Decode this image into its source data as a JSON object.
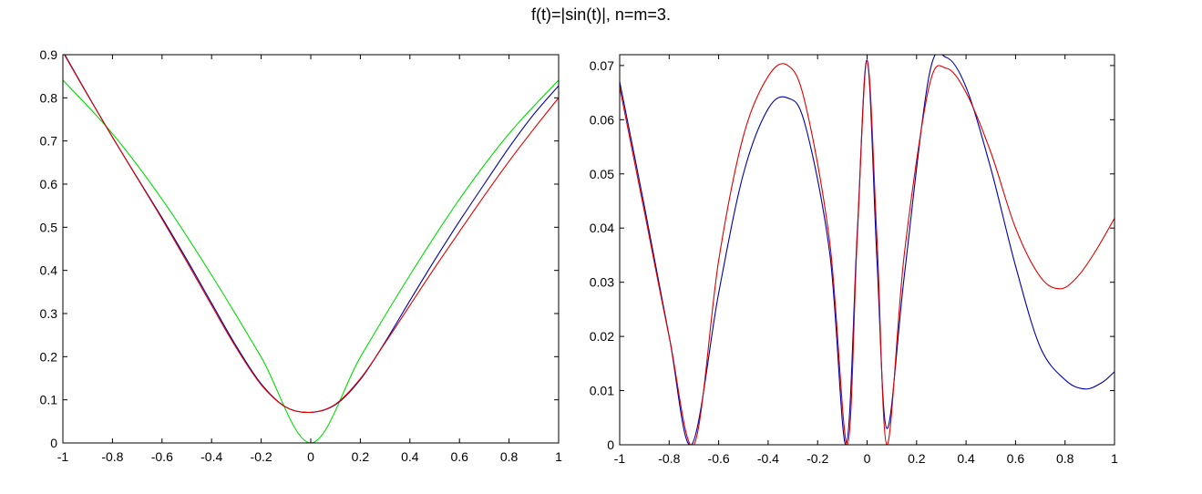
{
  "figure": {
    "title": "f(t)=|sin(t)|, n=m=3."
  },
  "chart_data": [
    {
      "type": "line",
      "xlim": [
        -1,
        1
      ],
      "ylim": [
        0,
        0.9
      ],
      "x_ticks": [
        -1,
        -0.8,
        -0.6,
        -0.4,
        -0.2,
        0,
        0.2,
        0.4,
        0.6,
        0.8,
        1
      ],
      "x_tick_labels": [
        "-1",
        "-0.8",
        "-0.6",
        "-0.4",
        "-0.2",
        "0",
        "0.2",
        "0.4",
        "0.6",
        "0.8",
        "1"
      ],
      "y_ticks": [
        0,
        0.1,
        0.2,
        0.3,
        0.4,
        0.5,
        0.6,
        0.7,
        0.8,
        0.9
      ],
      "y_tick_labels": [
        "0",
        "0.1",
        "0.2",
        "0.3",
        "0.4",
        "0.5",
        "0.6",
        "0.7",
        "0.8",
        "0.9"
      ],
      "grid": false,
      "series": [
        {
          "color": "#00dd00",
          "x": [
            -1,
            -0.8,
            -0.6,
            -0.4,
            -0.2,
            0,
            0.2,
            0.4,
            0.6,
            0.8,
            1
          ],
          "values": [
            0.841,
            0.717,
            0.565,
            0.389,
            0.199,
            0,
            0.199,
            0.389,
            0.565,
            0.717,
            0.841
          ]
        },
        {
          "color": "#0000aa",
          "x": [
            -1,
            -0.9,
            -0.8,
            -0.7,
            -0.6,
            -0.5,
            -0.4,
            -0.3,
            -0.2,
            -0.1,
            0,
            0.1,
            0.2,
            0.3,
            0.4,
            0.5,
            0.6,
            0.7,
            0.8,
            0.9,
            1
          ],
          "values": [
            0.908,
            0.807,
            0.709,
            0.615,
            0.522,
            0.425,
            0.324,
            0.224,
            0.137,
            0.083,
            0.071,
            0.089,
            0.147,
            0.234,
            0.33,
            0.424,
            0.514,
            0.6,
            0.685,
            0.762,
            0.828
          ]
        },
        {
          "color": "#dd0000",
          "x": [
            -1,
            -0.9,
            -0.8,
            -0.7,
            -0.6,
            -0.5,
            -0.4,
            -0.3,
            -0.2,
            -0.1,
            0,
            0.1,
            0.2,
            0.3,
            0.4,
            0.5,
            0.6,
            0.7,
            0.8,
            0.9,
            1
          ],
          "values": [
            0.906,
            0.806,
            0.709,
            0.614,
            0.519,
            0.42,
            0.319,
            0.22,
            0.135,
            0.083,
            0.071,
            0.09,
            0.149,
            0.232,
            0.319,
            0.406,
            0.49,
            0.573,
            0.653,
            0.728,
            0.8
          ]
        }
      ]
    },
    {
      "type": "line",
      "xlim": [
        -1,
        1
      ],
      "ylim": [
        0,
        0.072
      ],
      "x_ticks": [
        -1,
        -0.8,
        -0.6,
        -0.4,
        -0.2,
        0,
        0.2,
        0.4,
        0.6,
        0.8,
        1
      ],
      "x_tick_labels": [
        "-1",
        "-0.8",
        "-0.6",
        "-0.4",
        "-0.2",
        "0",
        "0.2",
        "0.4",
        "0.6",
        "0.8",
        "1"
      ],
      "y_ticks": [
        0,
        0.01,
        0.02,
        0.03,
        0.04,
        0.05,
        0.06,
        0.07
      ],
      "y_tick_labels": [
        "0",
        "0.01",
        "0.02",
        "0.03",
        "0.04",
        "0.05",
        "0.06",
        "0.07"
      ],
      "grid": false,
      "series": [
        {
          "color": "#0000aa",
          "x": [
            -1,
            -0.9,
            -0.8,
            -0.71,
            -0.6,
            -0.5,
            -0.4,
            -0.32,
            -0.25,
            -0.15,
            -0.085,
            -0.04,
            0,
            0.04,
            0.08,
            0.15,
            0.25,
            0.32,
            0.4,
            0.5,
            0.6,
            0.7,
            0.8,
            0.88,
            0.95,
            1
          ],
          "values": [
            0.067,
            0.044,
            0.02,
            0,
            0.028,
            0.05,
            0.062,
            0.064,
            0.059,
            0.035,
            0,
            0.039,
            0.071,
            0.034,
            0.003,
            0.031,
            0.068,
            0.0715,
            0.066,
            0.051,
            0.033,
            0.018,
            0.012,
            0.0103,
            0.0115,
            0.0135
          ]
        },
        {
          "color": "#dd0000",
          "x": [
            -1,
            -0.9,
            -0.8,
            -0.7,
            -0.6,
            -0.5,
            -0.4,
            -0.32,
            -0.25,
            -0.15,
            -0.08,
            -0.04,
            0,
            0.04,
            0.08,
            0.15,
            0.25,
            0.32,
            0.4,
            0.5,
            0.6,
            0.7,
            0.78,
            0.85,
            0.92,
            1
          ],
          "values": [
            0.066,
            0.043,
            0.02,
            0,
            0.034,
            0.057,
            0.068,
            0.07,
            0.063,
            0.037,
            0,
            0.038,
            0.071,
            0.038,
            0,
            0.035,
            0.066,
            0.0695,
            0.065,
            0.054,
            0.04,
            0.031,
            0.0288,
            0.031,
            0.0355,
            0.0418
          ]
        }
      ]
    }
  ]
}
